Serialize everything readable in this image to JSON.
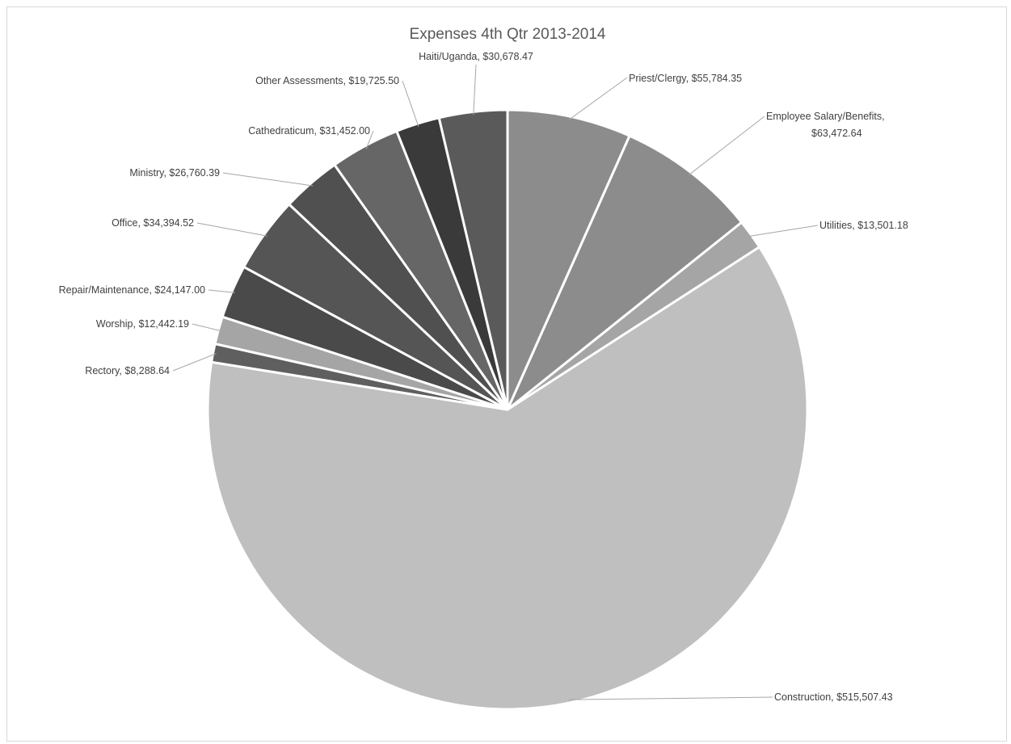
{
  "chart_data": {
    "type": "pie",
    "title": "Expenses 4th Qtr 2013-2014",
    "start_angle_deg": 0,
    "direction": "clockwise",
    "slices": [
      {
        "label": "Priest/Clergy, $55,784.35",
        "name": "Priest/Clergy",
        "value": 55784.35,
        "color": "#8c8c8c"
      },
      {
        "label": "Employee Salary/Benefits, $63,472.64",
        "name": "Employee Salary/Benefits",
        "value": 63472.64,
        "color": "#8c8c8c"
      },
      {
        "label": "Utilities, $13,501.18",
        "name": "Utilities",
        "value": 13501.18,
        "color": "#a5a5a5"
      },
      {
        "label": "Construction, $515,507.43",
        "name": "Construction",
        "value": 515507.43,
        "color": "#bfbfbf"
      },
      {
        "label": "Rectory, $8,288.64",
        "name": "Rectory",
        "value": 8288.64,
        "color": "#5f5f5f"
      },
      {
        "label": "Worship, $12,442.19",
        "name": "Worship",
        "value": 12442.19,
        "color": "#a5a5a5"
      },
      {
        "label": "Repair/Maintenance, $24,147.00",
        "name": "Repair/Maintenance",
        "value": 24147.0,
        "color": "#4a4a4a"
      },
      {
        "label": "Office, $34,394.52",
        "name": "Office",
        "value": 34394.52,
        "color": "#555555"
      },
      {
        "label": "Ministry, $26,760.39",
        "name": "Ministry",
        "value": 26760.39,
        "color": "#505050"
      },
      {
        "label": "Cathedraticum, $31,452.00",
        "name": "Cathedraticum",
        "value": 31452.0,
        "color": "#666666"
      },
      {
        "label": "Other Assessments, $19,725.50",
        "name": "Other Assessments",
        "value": 19725.5,
        "color": "#3a3a3a"
      },
      {
        "label": "Haiti/Uganda, $30,678.47",
        "name": "Haiti/Uganda",
        "value": 30678.47,
        "color": "#5a5a5a"
      }
    ]
  }
}
